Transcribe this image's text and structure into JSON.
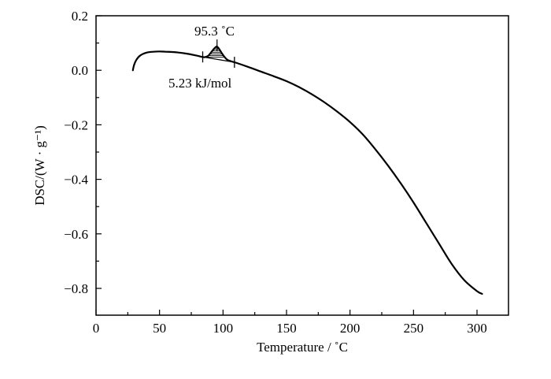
{
  "chart_data": {
    "type": "line",
    "xlabel": "Temperature / ˚C",
    "ylabel": "DSC/(W · g⁻¹)",
    "xlim": [
      0,
      320
    ],
    "ylim": [
      -0.9,
      0.2
    ],
    "xticks": [
      0,
      50,
      100,
      150,
      200,
      250,
      300
    ],
    "yticks": [
      0.2,
      0.0,
      -0.2,
      -0.4,
      -0.6,
      -0.8
    ],
    "xtick_labels": [
      "0",
      "50",
      "100",
      "150",
      "200",
      "250",
      "300"
    ],
    "ytick_labels": [
      "0.2",
      "0.0",
      "−0.2",
      "−0.4",
      "−0.6",
      "−0.8"
    ],
    "grid": false,
    "legend": "none",
    "series": [
      {
        "color": "#000000",
        "x": [
          29,
          30,
          32,
          35,
          40,
          45,
          50,
          55,
          60,
          65,
          70,
          75,
          80,
          85,
          88,
          90,
          92,
          94,
          95.3,
          97,
          99,
          101,
          103,
          105,
          110,
          120,
          130,
          140,
          150,
          160,
          170,
          180,
          190,
          200,
          210,
          220,
          230,
          240,
          250,
          260,
          270,
          280,
          290,
          300,
          304
        ],
        "y": [
          0.0,
          0.02,
          0.04,
          0.055,
          0.065,
          0.068,
          0.069,
          0.068,
          0.067,
          0.065,
          0.062,
          0.058,
          0.053,
          0.048,
          0.052,
          0.062,
          0.074,
          0.084,
          0.087,
          0.078,
          0.063,
          0.05,
          0.04,
          0.035,
          0.028,
          0.012,
          -0.005,
          -0.022,
          -0.04,
          -0.062,
          -0.088,
          -0.118,
          -0.152,
          -0.19,
          -0.235,
          -0.29,
          -0.35,
          -0.415,
          -0.485,
          -0.56,
          -0.635,
          -0.71,
          -0.77,
          -0.81,
          -0.82
        ]
      }
    ],
    "annotations": [
      {
        "text": "95.3  ˚C",
        "x": 95.3,
        "y": 0.087
      },
      {
        "text": "5.23 kJ/mol"
      }
    ],
    "peak_baseline": {
      "x_start": 84,
      "x_end": 109
    }
  }
}
